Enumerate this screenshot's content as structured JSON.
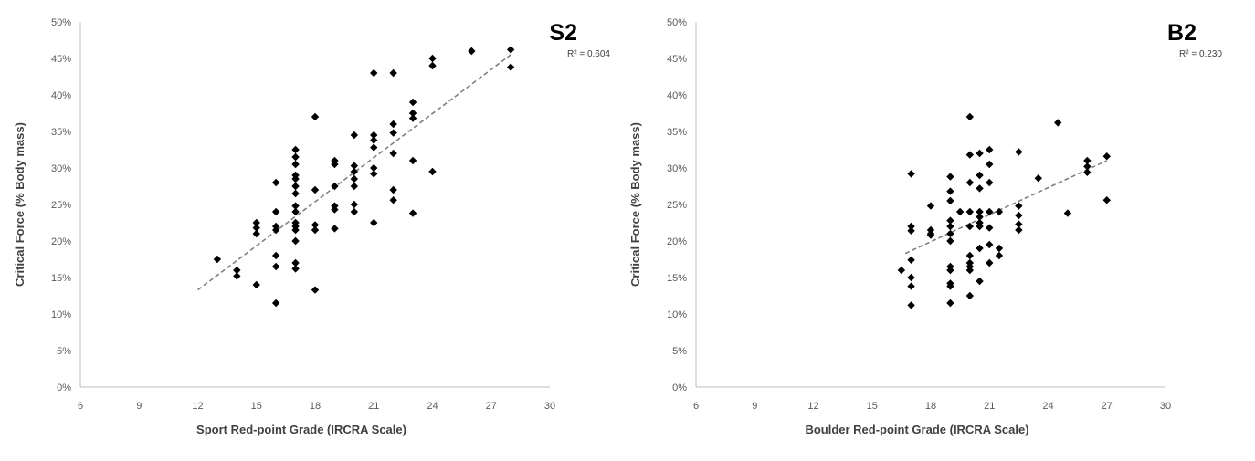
{
  "chart_data": [
    {
      "type": "scatter",
      "panel_label": "S2",
      "r_squared_label": "R² = 0.604",
      "xlabel": "Sport Red-point Grade (IRCRA Scale)",
      "ylabel": "Critical Force (% Body mass)",
      "xlim": [
        6,
        30
      ],
      "ylim": [
        0,
        50
      ],
      "x_ticks": [
        "6",
        "9",
        "12",
        "15",
        "18",
        "21",
        "24",
        "27",
        "30"
      ],
      "y_ticks": [
        "0%",
        "5%",
        "10%",
        "15%",
        "20%",
        "25%",
        "30%",
        "35%",
        "40%",
        "45%",
        "50%"
      ],
      "grid": false,
      "marker": "diamond",
      "marker_color": "#000000",
      "trendline": {
        "style": "dashed",
        "color": "#808080",
        "from": [
          12,
          13.3
        ],
        "to": [
          28,
          45.5
        ]
      },
      "points": [
        [
          13,
          17.5
        ],
        [
          14,
          16
        ],
        [
          14,
          15.2
        ],
        [
          15,
          22.5
        ],
        [
          15,
          21.8
        ],
        [
          15,
          21
        ],
        [
          15,
          14
        ],
        [
          16,
          28
        ],
        [
          16,
          24
        ],
        [
          16,
          22
        ],
        [
          16,
          21.5
        ],
        [
          16,
          18
        ],
        [
          16,
          16.5
        ],
        [
          16,
          11.5
        ],
        [
          17,
          32.5
        ],
        [
          17,
          31.5
        ],
        [
          17,
          30.5
        ],
        [
          17,
          29
        ],
        [
          17,
          28.5
        ],
        [
          17,
          27.5
        ],
        [
          17,
          26.5
        ],
        [
          17,
          24.8
        ],
        [
          17,
          24
        ],
        [
          17,
          22.5
        ],
        [
          17,
          22
        ],
        [
          17,
          21.5
        ],
        [
          17,
          20
        ],
        [
          17,
          17
        ],
        [
          17,
          16.2
        ],
        [
          18,
          37
        ],
        [
          18,
          27
        ],
        [
          18,
          22.2
        ],
        [
          18,
          21.5
        ],
        [
          18,
          13.3
        ],
        [
          19,
          31
        ],
        [
          19,
          30.5
        ],
        [
          19,
          27.5
        ],
        [
          19,
          24.8
        ],
        [
          19,
          24.3
        ],
        [
          19,
          21.7
        ],
        [
          20,
          34.5
        ],
        [
          20,
          30.3
        ],
        [
          20,
          29.5
        ],
        [
          20,
          28.5
        ],
        [
          20,
          27.5
        ],
        [
          20,
          25
        ],
        [
          20,
          24
        ],
        [
          21,
          43
        ],
        [
          21,
          34.5
        ],
        [
          21,
          33.8
        ],
        [
          21,
          32.8
        ],
        [
          21,
          30
        ],
        [
          21,
          29.2
        ],
        [
          21,
          22.5
        ],
        [
          22,
          43
        ],
        [
          22,
          36
        ],
        [
          22,
          34.8
        ],
        [
          22,
          32
        ],
        [
          22,
          27
        ],
        [
          22,
          25.6
        ],
        [
          23,
          39
        ],
        [
          23,
          37.5
        ],
        [
          23,
          36.8
        ],
        [
          23,
          31
        ],
        [
          23,
          23.8
        ],
        [
          24,
          45
        ],
        [
          24,
          44
        ],
        [
          24,
          29.5
        ],
        [
          26,
          46
        ],
        [
          28,
          46.2
        ],
        [
          28,
          43.8
        ]
      ]
    },
    {
      "type": "scatter",
      "panel_label": "B2",
      "r_squared_label": "R² = 0.230",
      "xlabel": "Boulder Red-point Grade (IRCRA Scale)",
      "ylabel": "Critical Force (% Body mass)",
      "xlim": [
        6,
        30
      ],
      "ylim": [
        0,
        50
      ],
      "x_ticks": [
        "6",
        "9",
        "12",
        "15",
        "18",
        "21",
        "24",
        "27",
        "30"
      ],
      "y_ticks": [
        "0%",
        "5%",
        "10%",
        "15%",
        "20%",
        "25%",
        "30%",
        "35%",
        "40%",
        "45%",
        "50%"
      ],
      "grid": false,
      "marker": "diamond",
      "marker_color": "#000000",
      "trendline": {
        "style": "dashed",
        "color": "#808080",
        "from": [
          16.7,
          18.3
        ],
        "to": [
          27,
          31
        ]
      },
      "points": [
        [
          16.5,
          16
        ],
        [
          17,
          29.2
        ],
        [
          17,
          22
        ],
        [
          17,
          21.4
        ],
        [
          17,
          17.4
        ],
        [
          17,
          15
        ],
        [
          17,
          13.8
        ],
        [
          17,
          11.2
        ],
        [
          18,
          24.8
        ],
        [
          18,
          21.5
        ],
        [
          18,
          21
        ],
        [
          18,
          20.8
        ],
        [
          19,
          28.8
        ],
        [
          19,
          26.8
        ],
        [
          19,
          25.5
        ],
        [
          19,
          22.8
        ],
        [
          19,
          22
        ],
        [
          19,
          21
        ],
        [
          19,
          20
        ],
        [
          19,
          16.5
        ],
        [
          19,
          16
        ],
        [
          19,
          14.2
        ],
        [
          19,
          13.8
        ],
        [
          19,
          11.5
        ],
        [
          19.5,
          24
        ],
        [
          20,
          37
        ],
        [
          20,
          31.8
        ],
        [
          20,
          28
        ],
        [
          20,
          24
        ],
        [
          20,
          22
        ],
        [
          20,
          18
        ],
        [
          20,
          17
        ],
        [
          20,
          16.5
        ],
        [
          20,
          16
        ],
        [
          20,
          12.5
        ],
        [
          20.5,
          32
        ],
        [
          20.5,
          29
        ],
        [
          20.5,
          27.2
        ],
        [
          20.5,
          24
        ],
        [
          20.5,
          23.3
        ],
        [
          20.5,
          22.5
        ],
        [
          20.5,
          22
        ],
        [
          20.5,
          19
        ],
        [
          20.5,
          14.5
        ],
        [
          21,
          32.5
        ],
        [
          21,
          30.5
        ],
        [
          21,
          28
        ],
        [
          21,
          24
        ],
        [
          21,
          21.8
        ],
        [
          21,
          19.5
        ],
        [
          21,
          17
        ],
        [
          21.5,
          24
        ],
        [
          21.5,
          19
        ],
        [
          21.5,
          18
        ],
        [
          22.5,
          32.2
        ],
        [
          22.5,
          24.8
        ],
        [
          22.5,
          23.5
        ],
        [
          22.5,
          22.3
        ],
        [
          22.5,
          21.5
        ],
        [
          23.5,
          28.6
        ],
        [
          24.5,
          36.2
        ],
        [
          25,
          23.8
        ],
        [
          26,
          31
        ],
        [
          26,
          30.2
        ],
        [
          26,
          29.4
        ],
        [
          27,
          31.6
        ],
        [
          27,
          25.6
        ]
      ]
    }
  ]
}
